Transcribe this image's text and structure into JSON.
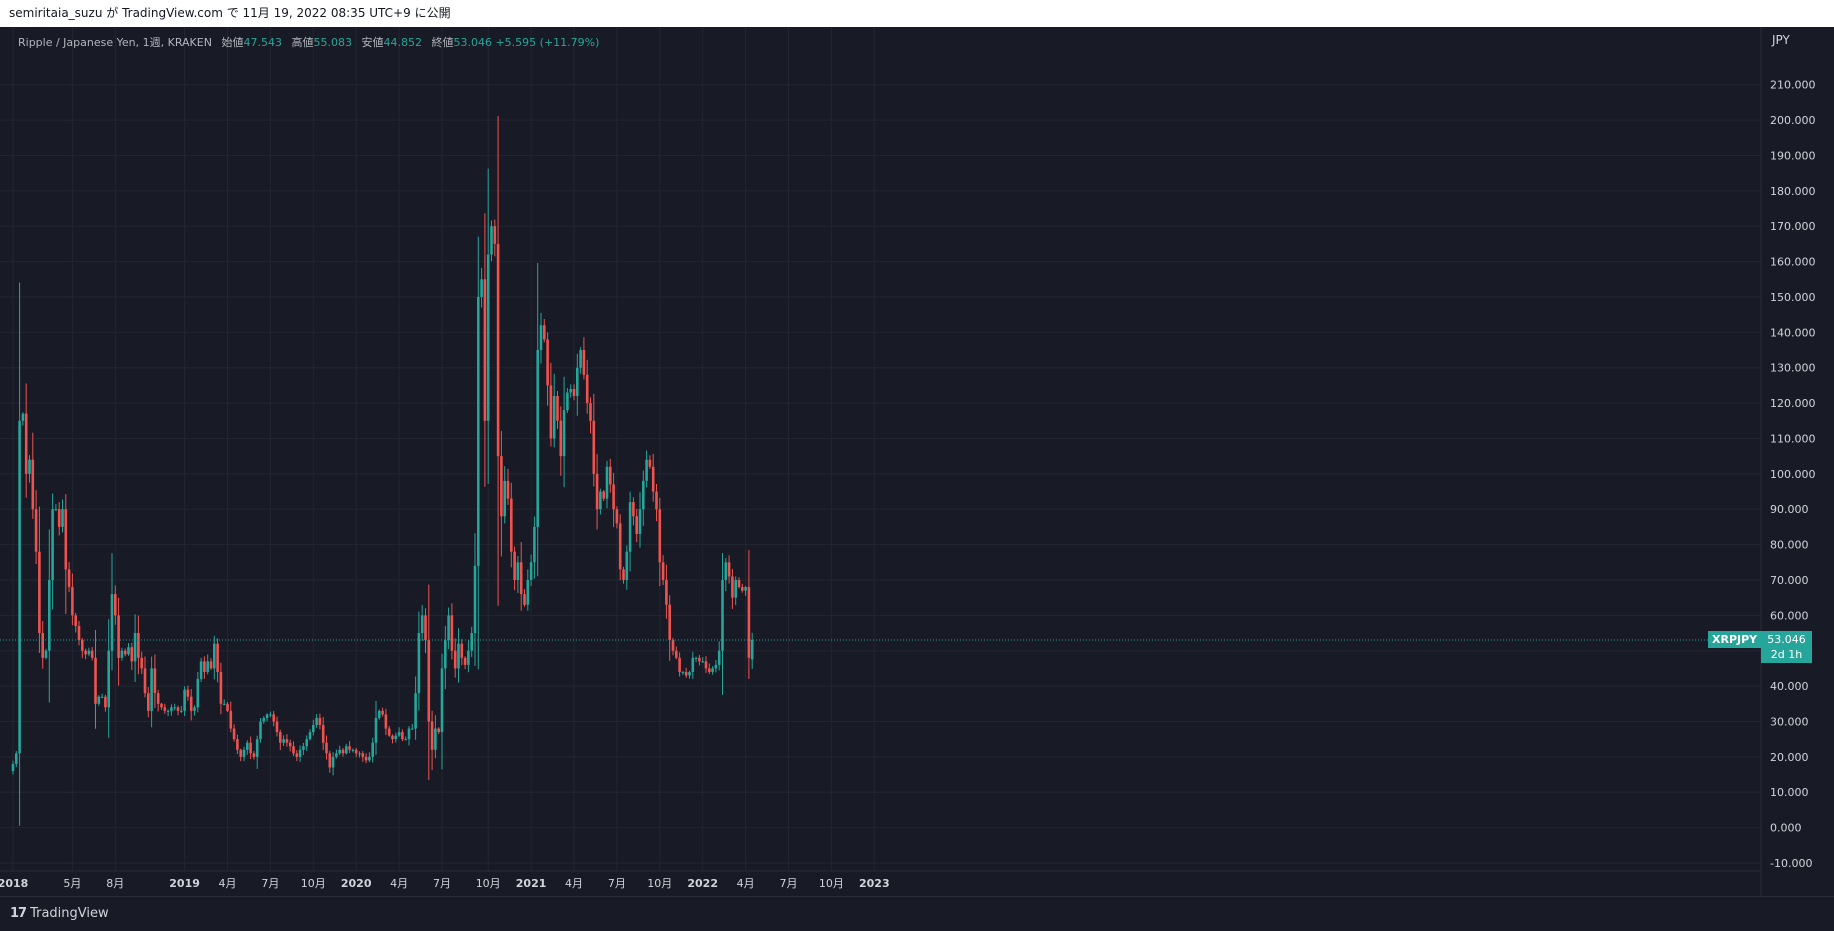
{
  "header": {
    "published_text": "semiritaia_suzu が TradingView.com で 11月 19, 2022 08:35 UTC+9 に公開"
  },
  "legend": {
    "title": "Ripple / Japanese Yen, 1週, KRAKEN",
    "open_label": "始値",
    "open": "47.543",
    "high_label": "高値",
    "high": "55.083",
    "low_label": "安値",
    "low": "44.852",
    "close_label": "終値",
    "close": "53.046",
    "change": "+5.595 (+11.79%)"
  },
  "price_axis": {
    "unit": "JPY"
  },
  "last_price": {
    "symbol": "XRPJPY",
    "price": "53.046",
    "countdown": "2d 1h"
  },
  "footer": {
    "logo_mark": "17",
    "logo_text": "TradingView"
  },
  "colors": {
    "background": "#181b25",
    "up": "#26a69a",
    "down": "#ef5350",
    "grid": "#232632",
    "text": "#d1d4dc"
  },
  "chart_data": {
    "type": "candlestick",
    "interval": "1週",
    "symbol": "XRPJPY",
    "exchange": "KRAKEN",
    "ylim": [
      -10,
      215
    ],
    "y_ticks": [
      "-10.000",
      "0.000",
      "10.000",
      "20.000",
      "30.000",
      "40.000",
      "50.000",
      "60.000",
      "70.000",
      "80.000",
      "90.000",
      "100.000",
      "110.000",
      "120.000",
      "130.000",
      "140.000",
      "150.000",
      "160.000",
      "170.000",
      "180.000",
      "190.000",
      "200.000",
      "210.000"
    ],
    "x_ticks": [
      {
        "label": "2018",
        "week": 0,
        "bold": true
      },
      {
        "label": "5月",
        "week": 18,
        "bold": false
      },
      {
        "label": "8月",
        "week": 31,
        "bold": false
      },
      {
        "label": "2019",
        "week": 52,
        "bold": true
      },
      {
        "label": "4月",
        "week": 65,
        "bold": false
      },
      {
        "label": "7月",
        "week": 78,
        "bold": false
      },
      {
        "label": "10月",
        "week": 91,
        "bold": false
      },
      {
        "label": "2020",
        "week": 104,
        "bold": true
      },
      {
        "label": "4月",
        "week": 117,
        "bold": false
      },
      {
        "label": "7月",
        "week": 130,
        "bold": false
      },
      {
        "label": "10月",
        "week": 144,
        "bold": false
      },
      {
        "label": "2021",
        "week": 157,
        "bold": true
      },
      {
        "label": "4月",
        "week": 170,
        "bold": false
      },
      {
        "label": "7月",
        "week": 183,
        "bold": false
      },
      {
        "label": "10月",
        "week": 196,
        "bold": false
      },
      {
        "label": "2022",
        "week": 209,
        "bold": true
      },
      {
        "label": "4月",
        "week": 222,
        "bold": false
      },
      {
        "label": "7月",
        "week": 235,
        "bold": false
      },
      {
        "label": "10月",
        "week": 248,
        "bold": false
      },
      {
        "label": "2023",
        "week": 261,
        "bold": true
      }
    ],
    "last_close": 53.046,
    "close_series": [
      18,
      21,
      115,
      117,
      100,
      104,
      90,
      78,
      55,
      48,
      50,
      70,
      90,
      90,
      85,
      90,
      73,
      68,
      60,
      57,
      53,
      50,
      49,
      50,
      48,
      35,
      37,
      37,
      34,
      50,
      66,
      60,
      48,
      50,
      49,
      51,
      47,
      55,
      48,
      45,
      38,
      33,
      45,
      38,
      35,
      34,
      33,
      33,
      34,
      34,
      33,
      33,
      39,
      37,
      33,
      34,
      42,
      47,
      44,
      47,
      45,
      52,
      44,
      35,
      35,
      33,
      28,
      25,
      22,
      20,
      22,
      24,
      21,
      20,
      25,
      30,
      31,
      32,
      32,
      30,
      27,
      24,
      25,
      24,
      23,
      21,
      20,
      22,
      23,
      25,
      27,
      29,
      31,
      29,
      24,
      21,
      17,
      20,
      21,
      22,
      21,
      23,
      22,
      22,
      21,
      21,
      20,
      19,
      20,
      24,
      31,
      33,
      32,
      28,
      26,
      25,
      26,
      27,
      25,
      25,
      28,
      28,
      38,
      55,
      60,
      53,
      30,
      22,
      28,
      27,
      45,
      53,
      60,
      50,
      45,
      52,
      48,
      46,
      50,
      55,
      74,
      150,
      155,
      115,
      162,
      170,
      165,
      105,
      88,
      98,
      93,
      78,
      70,
      75,
      66,
      63,
      70,
      75,
      85,
      135,
      142,
      138,
      125,
      110,
      122,
      115,
      105,
      118,
      123,
      124,
      122,
      130,
      135,
      128,
      120,
      115,
      100,
      90,
      95,
      93,
      102,
      97,
      90,
      86,
      73,
      70,
      78,
      92,
      88,
      83,
      90,
      98,
      104,
      102,
      95,
      90,
      75,
      70,
      63,
      53,
      50,
      48,
      44,
      44,
      43,
      44,
      48,
      48,
      47,
      47,
      45,
      44,
      45,
      46,
      50,
      70,
      75,
      71,
      65,
      70,
      68,
      67,
      68,
      48,
      53.046
    ]
  }
}
